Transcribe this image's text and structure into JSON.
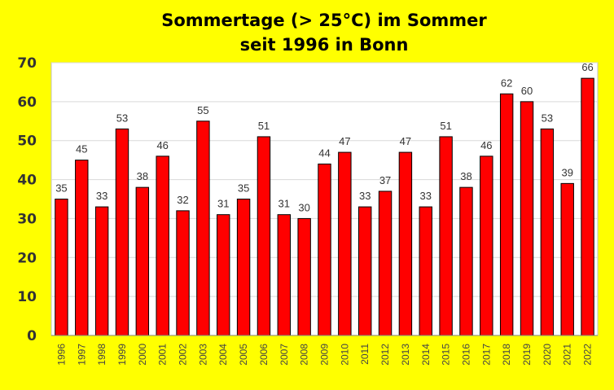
{
  "chart_data": {
    "type": "bar",
    "title": "Sommertage (> 25°C) im Sommer",
    "subtitle": "seit 1996 in Bonn",
    "xlabel": "",
    "ylabel": "",
    "ylim": [
      0,
      70
    ],
    "yticks": [
      0,
      10,
      20,
      30,
      40,
      50,
      60,
      70
    ],
    "grid": true,
    "legend": "none",
    "categories": [
      "1996",
      "1997",
      "1998",
      "1999",
      "2000",
      "2001",
      "2002",
      "2003",
      "2004",
      "2005",
      "2006",
      "2007",
      "2008",
      "2009",
      "2010",
      "2011",
      "2012",
      "2013",
      "2014",
      "2015",
      "2016",
      "2017",
      "2018",
      "2019",
      "2020",
      "2021",
      "2022"
    ],
    "values": [
      35,
      45,
      33,
      53,
      38,
      46,
      32,
      55,
      31,
      35,
      51,
      31,
      30,
      44,
      47,
      33,
      37,
      47,
      33,
      51,
      38,
      46,
      62,
      60,
      53,
      39,
      66
    ],
    "colors": {
      "background": "#ffff00",
      "plot_area": "#ffffff",
      "bar": "#ff0000",
      "bar_outline": "#000000",
      "grid": "#d9d9d9"
    }
  }
}
